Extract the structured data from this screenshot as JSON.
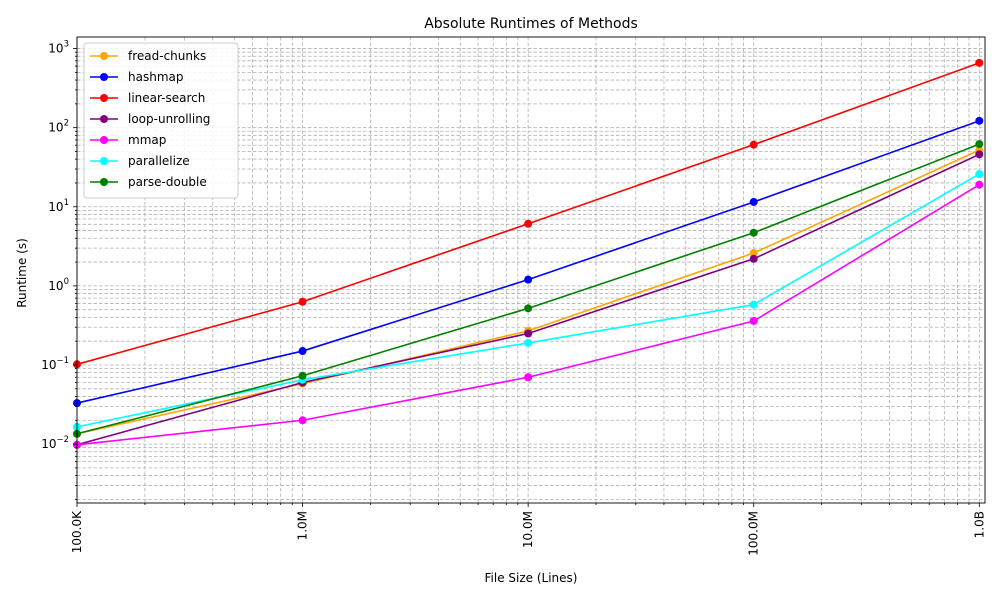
{
  "chart_data": {
    "type": "line",
    "title": "Absolute Runtimes of Methods",
    "xlabel": "File Size (Lines)",
    "ylabel": "Runtime (s)",
    "x_scale": "log",
    "y_scale": "log",
    "x": [
      100000,
      1000000,
      10000000,
      100000000,
      1000000000
    ],
    "x_tick_labels": [
      "100.0K",
      "1.0M",
      "10.0M",
      "100.0M",
      "1.0B"
    ],
    "xlim": [
      100000,
      1060000000
    ],
    "ylim": [
      0.0018,
      1400
    ],
    "y_ticks": [
      {
        "value": 0.01,
        "base": "10",
        "exp": "−2"
      },
      {
        "value": 0.1,
        "base": "10",
        "exp": "−1"
      },
      {
        "value": 1,
        "base": "10",
        "exp": "0"
      },
      {
        "value": 10,
        "base": "10",
        "exp": "1"
      },
      {
        "value": 100,
        "base": "10",
        "exp": "2"
      },
      {
        "value": 1000,
        "base": "10",
        "exp": "3"
      }
    ],
    "grid": true,
    "legend_position": "top-left",
    "series": [
      {
        "name": "fread-chunks",
        "color": "#FFA500",
        "values": [
          0.0135,
          0.058,
          0.27,
          2.6,
          52
        ]
      },
      {
        "name": "hashmap",
        "color": "#0000FF",
        "values": [
          0.033,
          0.15,
          1.2,
          11.5,
          122
        ]
      },
      {
        "name": "linear-search",
        "color": "#FF0000",
        "values": [
          0.102,
          0.63,
          6.1,
          61,
          660
        ]
      },
      {
        "name": "loop-unrolling",
        "color": "#800080",
        "values": [
          0.0098,
          0.06,
          0.25,
          2.2,
          46
        ]
      },
      {
        "name": "mmap",
        "color": "#FF00FF",
        "values": [
          0.0098,
          0.02,
          0.07,
          0.36,
          19
        ]
      },
      {
        "name": "parallelize",
        "color": "#00FFFF",
        "values": [
          0.0165,
          0.065,
          0.19,
          0.58,
          26
        ]
      },
      {
        "name": "parse-double",
        "color": "#008000",
        "values": [
          0.0135,
          0.073,
          0.52,
          4.7,
          62
        ]
      }
    ]
  }
}
